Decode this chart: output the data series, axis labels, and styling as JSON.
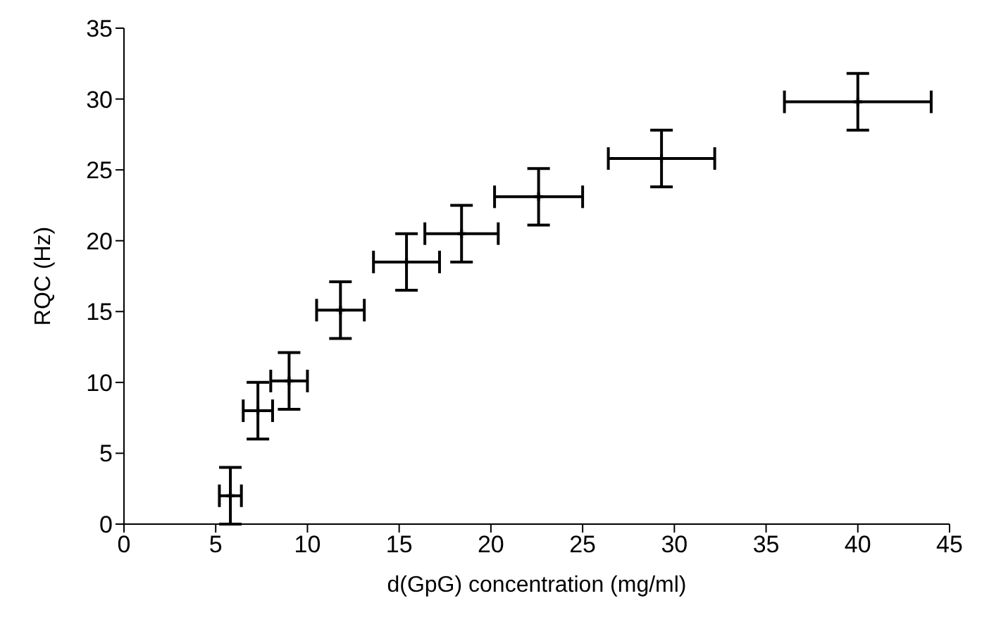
{
  "chart_data": {
    "type": "scatter",
    "xlabel": "d(GpG) concentration (mg/ml)",
    "ylabel": "RQC (Hz)",
    "x": [
      5.8,
      7.3,
      9.0,
      11.8,
      15.4,
      18.4,
      22.6,
      29.3,
      40.0
    ],
    "values": [
      2.0,
      8.0,
      10.1,
      15.1,
      18.5,
      20.5,
      23.1,
      25.8,
      29.8
    ],
    "errors": [
      2,
      2,
      2,
      2,
      2,
      2,
      2,
      2,
      2
    ],
    "xerrors": [
      0.6,
      0.8,
      1.0,
      1.3,
      1.8,
      2.0,
      2.4,
      2.9,
      4.0
    ],
    "color": "#000000",
    "marker": "cross",
    "grid": false,
    "legend": false,
    "xlim": [
      0,
      45
    ],
    "xticks": [
      0,
      5,
      10,
      15,
      20,
      25,
      30,
      35,
      40,
      45
    ],
    "ylim": [
      0,
      35
    ],
    "yticks": [
      0,
      5,
      10,
      15,
      20,
      25,
      30,
      35
    ]
  }
}
